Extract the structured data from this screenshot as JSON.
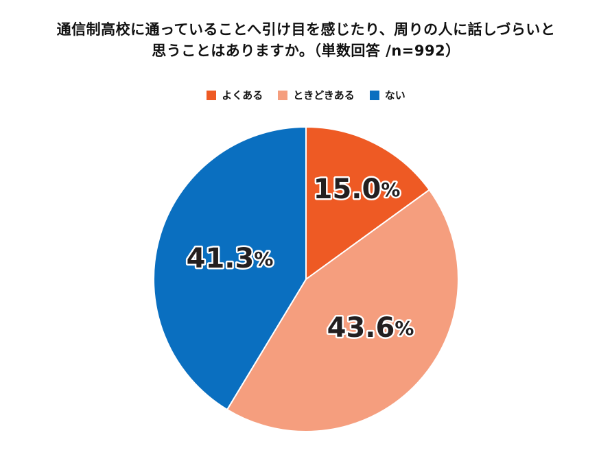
{
  "title": {
    "line1": "通信制高校に通っていることへ引け目を感じたり、周りの人に話しづらいと",
    "line2": "思うことはありますか。（単数回答 /n=992）"
  },
  "chart_data": {
    "type": "pie",
    "start": "12 o'clock, clockwise",
    "legend_position": "top",
    "slices": [
      {
        "label": "よくある",
        "value": 15.0,
        "display": "15.0%",
        "color": "#ee5a24"
      },
      {
        "label": "ときどきある",
        "value": 43.6,
        "display": "43.6%",
        "color": "#f59e7e"
      },
      {
        "label": "ない",
        "value": 41.3,
        "display": "41.3%",
        "color": "#0a6fc0"
      }
    ]
  }
}
